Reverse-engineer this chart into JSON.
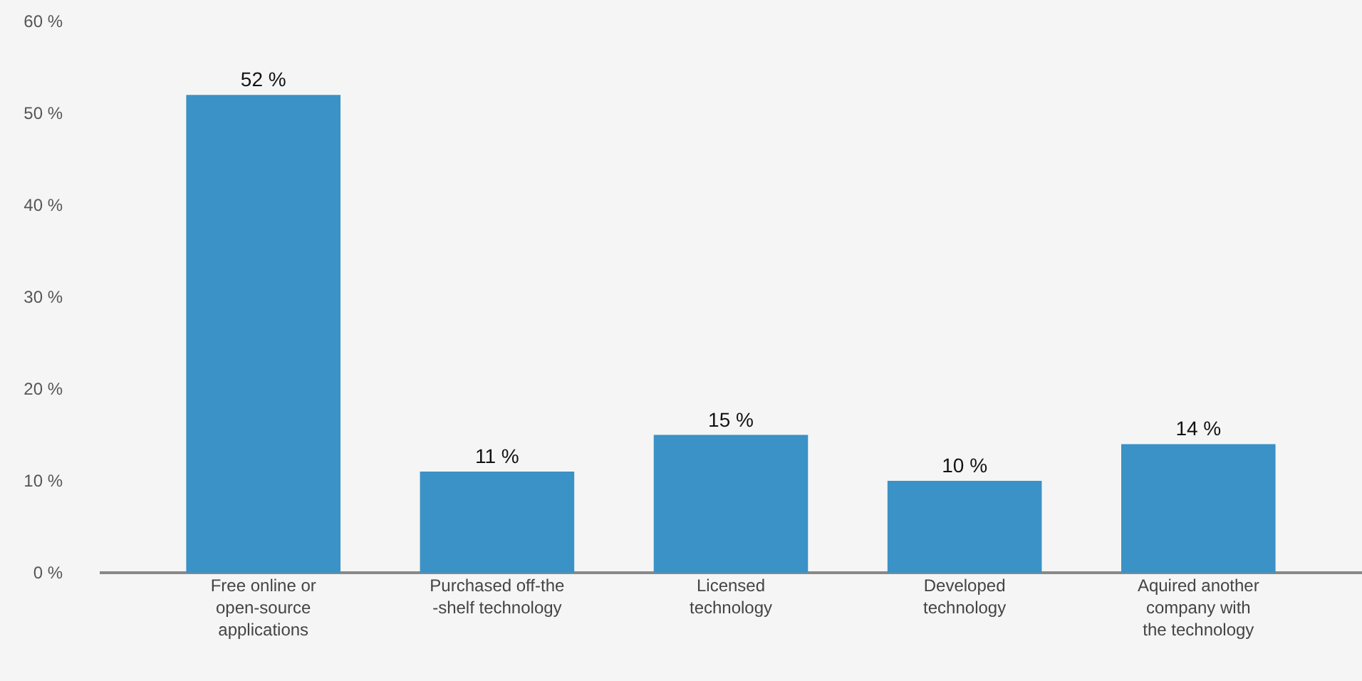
{
  "chart_data": {
    "type": "bar",
    "categories": [
      "Free online or\nopen-source\napplications",
      "Purchased off-the\n-shelf technology",
      "Licensed\ntechnology",
      "Developed\ntechnology",
      "Aquired another\ncompany with\nthe technology"
    ],
    "values": [
      52,
      11,
      15,
      10,
      14
    ],
    "color": "#3a92c6",
    "value_labels": [
      "52 %",
      "11 %",
      "15 %",
      "10 %",
      "14 %"
    ],
    "ylim": [
      0,
      60
    ],
    "yticks": [
      {
        "value": 0,
        "label": "0 %"
      },
      {
        "value": 10,
        "label": "10 %"
      },
      {
        "value": 20,
        "label": "20 %"
      },
      {
        "value": 30,
        "label": "30 %"
      },
      {
        "value": 40,
        "label": "40 %"
      },
      {
        "value": 50,
        "label": "50 %"
      },
      {
        "value": 60,
        "label": "60 %"
      }
    ],
    "grid": false,
    "legend": false
  }
}
